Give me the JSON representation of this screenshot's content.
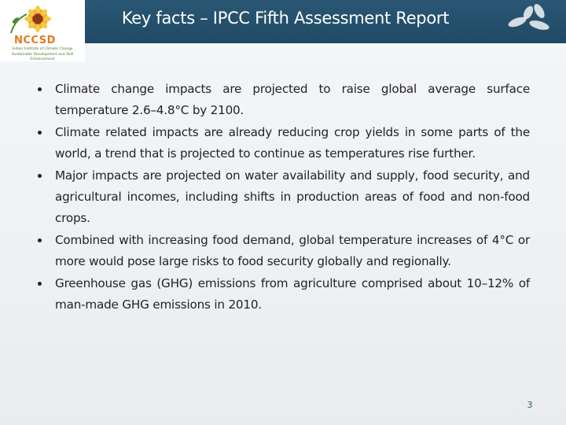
{
  "header": {
    "title": "Key facts – IPCC Fifth Assessment Report",
    "logo_text": "NCCSD",
    "logo_subtitle_line1": "Indian Institute of Climate Change",
    "logo_subtitle_line2": "Sustainable Development and Skill Enhancement"
  },
  "bullets": [
    "Climate change impacts are projected to raise global average surface temperature 2.6–4.8°C by 2100.",
    "Climate related impacts are already reducing crop yields in some parts of the world, a trend that is projected to continue as temperatures rise further.",
    "Major impacts are projected on water availability and supply, food security, and agricultural incomes, including shifts in production areas of food and non-food crops.",
    "Combined with increasing food demand, global temperature increases of 4°C or more would pose large risks to food security globally and regionally.",
    "Greenhouse gas (GHG) emissions from agriculture comprised about 10–12% of man-made GHG emissions in 2010."
  ],
  "footer": {
    "page_number": "3"
  },
  "colors": {
    "header_bg": "#1f4a66",
    "logo_orange": "#e07b1f",
    "logo_green": "#4a7a2a"
  },
  "icons": [
    "sunflower-logo-icon",
    "leaf-logo-icon",
    "bullet-icon"
  ]
}
